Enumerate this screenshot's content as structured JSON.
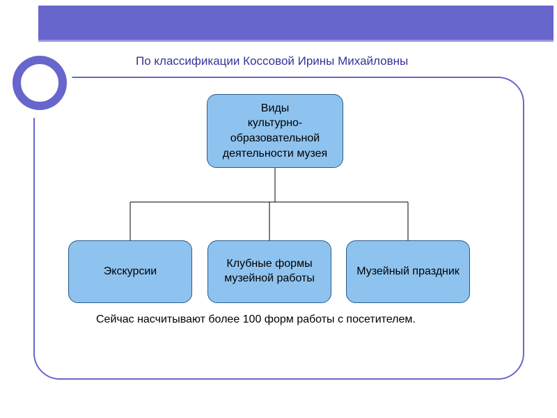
{
  "subtitle": "По классификации Коссовой Ирины Михайловны",
  "diagram": {
    "type": "tree",
    "root": {
      "label": "Виды\nкультурно-\nобразовательной\nдеятельности музея",
      "bg_color": "#8fc3ef",
      "border_color": "#2a5a8a",
      "border_radius": 14,
      "fontsize": 16
    },
    "children": [
      {
        "label": "Экскурсии",
        "bg_color": "#8fc3ef",
        "border_color": "#2a5a8a"
      },
      {
        "label": "Клубные формы\nмузейной работы",
        "bg_color": "#8fc3ef",
        "border_color": "#2a5a8a"
      },
      {
        "label": "Музейный праздник",
        "bg_color": "#8fc3ef",
        "border_color": "#2a5a8a"
      }
    ],
    "connector_color": "#000000",
    "connector_width": 1
  },
  "caption": "Сейчас насчитывают более 100 форм работы с посетителем.",
  "slide_style": {
    "banner_color": "#6666cc",
    "banner_underline": "#9999e0",
    "ring_color": "#6666cc",
    "ring_thickness": 12,
    "frame_border_color": "#6666cc",
    "frame_border_radius": 38,
    "subtitle_color": "#333399",
    "background_color": "#ffffff"
  }
}
